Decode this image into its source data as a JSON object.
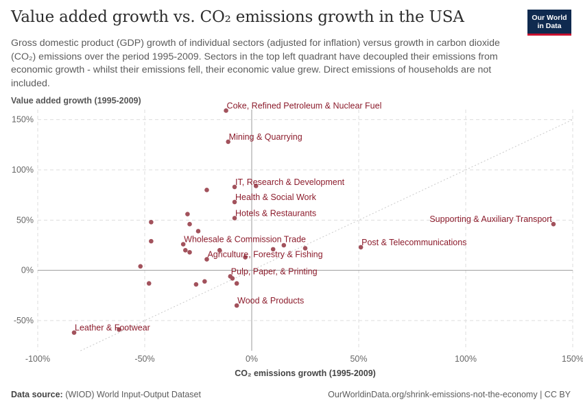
{
  "title": "Value added growth vs. CO₂ emissions growth in the USA",
  "subtitle": "Gross domestic product (GDP) growth of individual sectors (adjusted for inflation) versus growth in carbon dioxide (CO₂) emissions over the period 1995-2009. Sectors in the top left quadrant have decoupled their emissions from economic growth - whilst their emissions fell, their economic value grew. Direct emissions of households are not included.",
  "logo": {
    "line1": "Our World",
    "line2": "in Data"
  },
  "footer": {
    "source_label": "Data source:",
    "source_text": "(WIOD) World Input-Output Dataset",
    "right": "OurWorldinData.org/shrink-emissions-not-the-economy | CC BY"
  },
  "colors": {
    "point": "#a2525c",
    "label": "#8c1c2c",
    "grid": "#dddddd",
    "axis": "#999999"
  },
  "chart_data": {
    "type": "scatter",
    "xlabel": "CO₂ emissions growth (1995-2009)",
    "ylabel": "Value added growth (1995-2009)",
    "xlim": [
      -100,
      150
    ],
    "ylim": [
      -80,
      160
    ],
    "x_ticks": [
      -100,
      -50,
      0,
      50,
      100,
      150
    ],
    "x_tick_labels": [
      "-100%",
      "-50%",
      "0%",
      "50%",
      "100%",
      "150%"
    ],
    "y_ticks": [
      -50,
      0,
      50,
      100,
      150
    ],
    "y_tick_labels": [
      "-50%",
      "0%",
      "50%",
      "100%",
      "150%"
    ],
    "grid": true,
    "reference_line": "y = x",
    "points": [
      {
        "x": -12,
        "y": 159,
        "label": "Coke, Refined Petroleum & Nuclear Fuel"
      },
      {
        "x": -11,
        "y": 128,
        "label": "Mining & Quarrying"
      },
      {
        "x": -8,
        "y": 83,
        "label": "IT, Research & Development"
      },
      {
        "x": -8,
        "y": 68,
        "label": "Health & Social Work"
      },
      {
        "x": -8,
        "y": 52,
        "label": "Hotels & Restaurants"
      },
      {
        "x": 141,
        "y": 46,
        "label": "Supporting & Auxiliary Transport"
      },
      {
        "x": 51,
        "y": 23,
        "label": "Post & Telecommunications"
      },
      {
        "x": -32,
        "y": 26,
        "label": "Wholesale & Commission Trade"
      },
      {
        "x": -21,
        "y": 11,
        "label": "Agriculture, Forestry & Fishing"
      },
      {
        "x": -10,
        "y": -6,
        "label": "Pulp, Paper, & Printing"
      },
      {
        "x": -7,
        "y": -35,
        "label": "Wood & Products"
      },
      {
        "x": -83,
        "y": -62,
        "label": "Leather & Footwear"
      },
      {
        "x": 2,
        "y": 84,
        "label": ""
      },
      {
        "x": -21,
        "y": 80,
        "label": ""
      },
      {
        "x": -30,
        "y": 56,
        "label": ""
      },
      {
        "x": -47,
        "y": 48,
        "label": ""
      },
      {
        "x": -29,
        "y": 46,
        "label": ""
      },
      {
        "x": -25,
        "y": 39,
        "label": ""
      },
      {
        "x": -47,
        "y": 29,
        "label": ""
      },
      {
        "x": 15,
        "y": 25,
        "label": ""
      },
      {
        "x": 25,
        "y": 22,
        "label": ""
      },
      {
        "x": 10,
        "y": 21,
        "label": ""
      },
      {
        "x": -31,
        "y": 20,
        "label": ""
      },
      {
        "x": -29,
        "y": 18,
        "label": ""
      },
      {
        "x": -15,
        "y": 20,
        "label": ""
      },
      {
        "x": -3,
        "y": 13,
        "label": ""
      },
      {
        "x": -52,
        "y": 4,
        "label": ""
      },
      {
        "x": -9,
        "y": -8,
        "label": ""
      },
      {
        "x": -7,
        "y": -13,
        "label": ""
      },
      {
        "x": -22,
        "y": -11,
        "label": ""
      },
      {
        "x": -26,
        "y": -14,
        "label": ""
      },
      {
        "x": -48,
        "y": -13,
        "label": ""
      },
      {
        "x": -62,
        "y": -59,
        "label": ""
      }
    ]
  }
}
